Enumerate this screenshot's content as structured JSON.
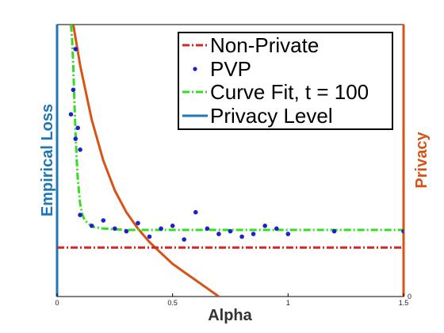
{
  "chart_data": {
    "type": "line",
    "xlabel": "Alpha",
    "ylabel_left": "Empirical Loss",
    "ylabel_right": "Privacy",
    "xlim": [
      0,
      1.5
    ],
    "x_ticks": [
      0,
      0.5,
      1,
      1.5
    ],
    "x_tick_labels": [
      "0",
      "0.5",
      "1",
      "1.5"
    ],
    "left_ylim": [
      0,
      1
    ],
    "right_ylim": [
      0,
      1
    ],
    "right_y_ticks": [
      "0"
    ],
    "legend_position": "top-right",
    "colors": {
      "non_private": "#d62728",
      "pvp": "#1f1fcc",
      "curve_fit": "#33dd22",
      "privacy_level": "#1f77b4",
      "privacy_axis": "#d95319"
    },
    "series": [
      {
        "name": "Non-Private",
        "style": "dash-dot",
        "x": [
          0,
          1.5
        ],
        "y": [
          0.18,
          0.18
        ]
      },
      {
        "name": "PVP",
        "style": "markers",
        "x": [
          0.06,
          0.07,
          0.08,
          0.08,
          0.09,
          0.1,
          0.1,
          0.15,
          0.2,
          0.25,
          0.3,
          0.35,
          0.4,
          0.45,
          0.5,
          0.55,
          0.6,
          0.65,
          0.7,
          0.75,
          0.8,
          0.85,
          0.9,
          0.95,
          1.0,
          1.2,
          1.5
        ],
        "y": [
          0.67,
          0.76,
          0.91,
          0.58,
          0.62,
          0.3,
          0.54,
          0.26,
          0.28,
          0.25,
          0.24,
          0.27,
          0.22,
          0.25,
          0.26,
          0.21,
          0.31,
          0.25,
          0.23,
          0.24,
          0.22,
          0.23,
          0.26,
          0.25,
          0.23,
          0.24,
          0.24
        ]
      },
      {
        "name": "Curve Fit, t = 100",
        "style": "dash-dot",
        "x": [
          0.06,
          0.065,
          0.07,
          0.075,
          0.08,
          0.085,
          0.09,
          0.1,
          0.11,
          0.12,
          0.14,
          0.16,
          0.2,
          0.3,
          0.5,
          1.0,
          1.5
        ],
        "y": [
          1.0,
          0.95,
          0.85,
          0.72,
          0.6,
          0.5,
          0.43,
          0.34,
          0.3,
          0.28,
          0.265,
          0.255,
          0.25,
          0.245,
          0.245,
          0.245,
          0.245
        ]
      },
      {
        "name": "Privacy Level",
        "style": "solid",
        "x": [],
        "y": []
      },
      {
        "name": "Privacy",
        "style": "solid",
        "axis": "right",
        "x": [
          0.07,
          0.1,
          0.15,
          0.2,
          0.25,
          0.3,
          0.35,
          0.4,
          0.45,
          0.5,
          0.55,
          0.6,
          0.65,
          0.7
        ],
        "y": [
          1.0,
          0.85,
          0.65,
          0.5,
          0.39,
          0.31,
          0.25,
          0.2,
          0.16,
          0.12,
          0.09,
          0.06,
          0.03,
          0.0
        ]
      }
    ]
  }
}
